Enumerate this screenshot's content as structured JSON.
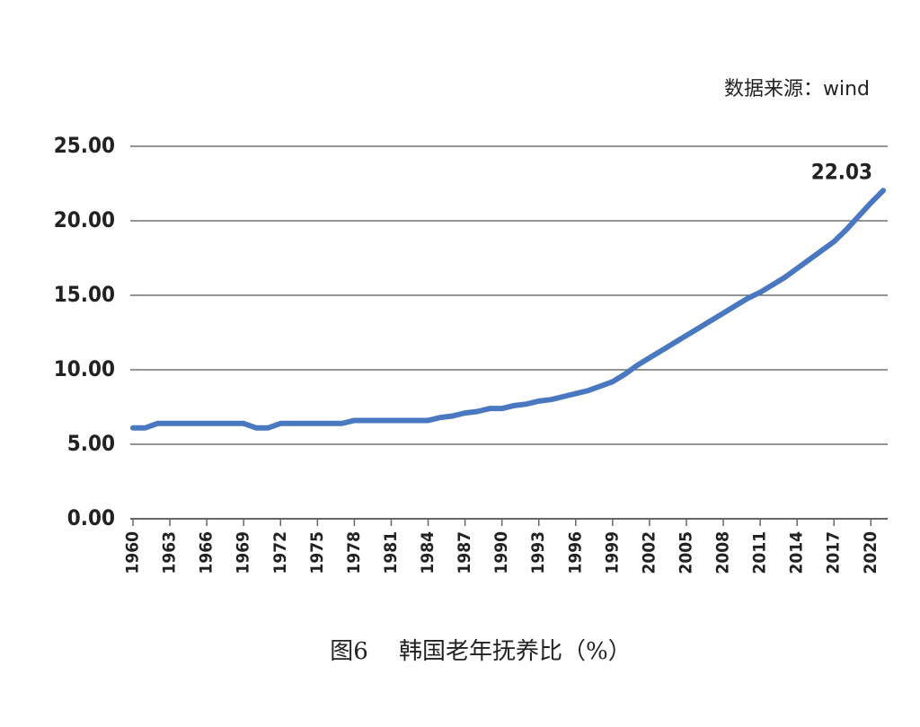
{
  "chart_data": {
    "type": "line",
    "source": "数据来源：wind",
    "caption": "图6　 韩国老年抚养比（%）",
    "x": [
      1960,
      1961,
      1962,
      1963,
      1964,
      1965,
      1966,
      1967,
      1968,
      1969,
      1970,
      1971,
      1972,
      1973,
      1974,
      1975,
      1976,
      1977,
      1978,
      1979,
      1980,
      1981,
      1982,
      1983,
      1984,
      1985,
      1986,
      1987,
      1988,
      1989,
      1990,
      1991,
      1992,
      1993,
      1994,
      1995,
      1996,
      1997,
      1998,
      1999,
      2000,
      2001,
      2002,
      2003,
      2004,
      2005,
      2006,
      2007,
      2008,
      2009,
      2010,
      2011,
      2012,
      2013,
      2014,
      2015,
      2016,
      2017,
      2018,
      2019,
      2020,
      2021
    ],
    "series": [
      {
        "color": "#4a78c0",
        "values": [
          6.1,
          6.1,
          6.4,
          6.4,
          6.4,
          6.4,
          6.4,
          6.4,
          6.4,
          6.4,
          6.1,
          6.1,
          6.4,
          6.4,
          6.4,
          6.4,
          6.4,
          6.4,
          6.6,
          6.6,
          6.6,
          6.6,
          6.6,
          6.6,
          6.6,
          6.8,
          6.9,
          7.1,
          7.2,
          7.4,
          7.4,
          7.6,
          7.7,
          7.9,
          8.0,
          8.2,
          8.4,
          8.6,
          8.9,
          9.2,
          9.7,
          10.3,
          10.8,
          11.3,
          11.8,
          12.3,
          12.8,
          13.3,
          13.8,
          14.3,
          14.8,
          15.2,
          15.7,
          16.2,
          16.8,
          17.4,
          18.0,
          18.6,
          19.4,
          20.3,
          21.2,
          22.03
        ],
        "value_labels": [
          null,
          null,
          null,
          null,
          null,
          null,
          null,
          null,
          null,
          null,
          null,
          null,
          null,
          null,
          null,
          null,
          null,
          null,
          null,
          null,
          null,
          null,
          null,
          null,
          null,
          null,
          null,
          null,
          null,
          null,
          null,
          null,
          null,
          null,
          null,
          null,
          null,
          null,
          null,
          null,
          null,
          null,
          null,
          null,
          null,
          null,
          null,
          null,
          null,
          null,
          null,
          null,
          null,
          null,
          null,
          null,
          null,
          null,
          null,
          null,
          null,
          "22.03"
        ]
      }
    ],
    "xlim": [
      1960,
      2021
    ],
    "xticks": [
      1960,
      1963,
      1966,
      1969,
      1972,
      1975,
      1978,
      1981,
      1984,
      1987,
      1990,
      1993,
      1996,
      1999,
      2002,
      2005,
      2008,
      2011,
      2014,
      2017,
      2020
    ],
    "ylim": [
      0,
      25
    ],
    "yticks": [
      {
        "value": 0,
        "label": "0.00"
      },
      {
        "value": 5,
        "label": "5.00"
      },
      {
        "value": 10,
        "label": "10.00"
      },
      {
        "value": 15,
        "label": "15.00"
      },
      {
        "value": 20,
        "label": "20.00"
      },
      {
        "value": 25,
        "label": "25.00"
      }
    ],
    "grid": true
  }
}
